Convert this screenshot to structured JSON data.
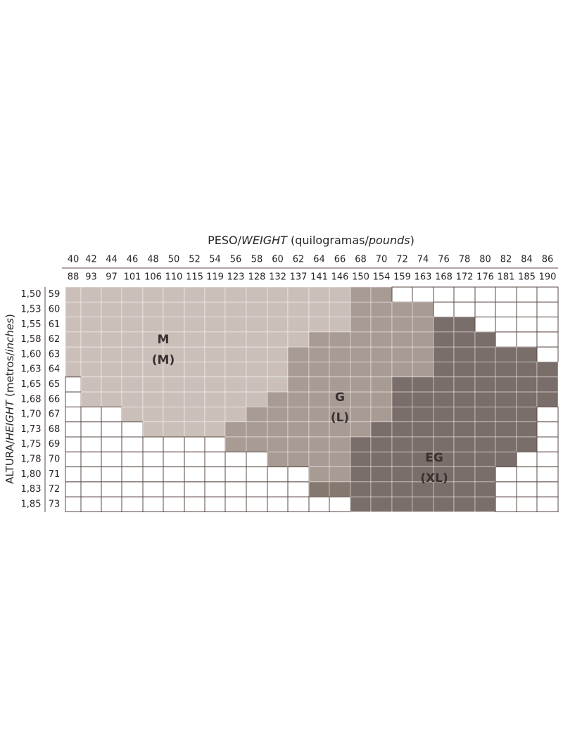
{
  "header": {
    "title": [
      "PESO/",
      "WEIGHT",
      " (quilogramas/",
      "pounds",
      ")"
    ]
  },
  "side_label": [
    "ALTURA/",
    "HEIGHT",
    " (metros/",
    "inches",
    ")"
  ],
  "columns": {
    "kg": [
      40,
      42,
      44,
      46,
      48,
      50,
      52,
      54,
      56,
      58,
      60,
      62,
      64,
      66,
      68,
      70,
      72,
      74,
      76,
      78,
      80,
      82,
      84,
      86
    ],
    "lbs": [
      88,
      93,
      97,
      101,
      106,
      110,
      115,
      119,
      123,
      128,
      132,
      137,
      141,
      146,
      150,
      154,
      159,
      163,
      168,
      172,
      176,
      181,
      185,
      190
    ]
  },
  "rows": {
    "meters": [
      "1,50",
      "1,53",
      "1,55",
      "1,58",
      "1,60",
      "1,63",
      "1,65",
      "1,68",
      "1,70",
      "1,73",
      "1,75",
      "1,78",
      "1,80",
      "1,83",
      "1,85"
    ],
    "inches": [
      59,
      60,
      61,
      62,
      63,
      64,
      65,
      66,
      67,
      68,
      69,
      70,
      71,
      72,
      73
    ]
  },
  "sizes": [
    {
      "label": "M",
      "alt": "(M)"
    },
    {
      "label": "G",
      "alt": "(L)"
    },
    {
      "label": "EG",
      "alt": "(XL)"
    }
  ]
}
